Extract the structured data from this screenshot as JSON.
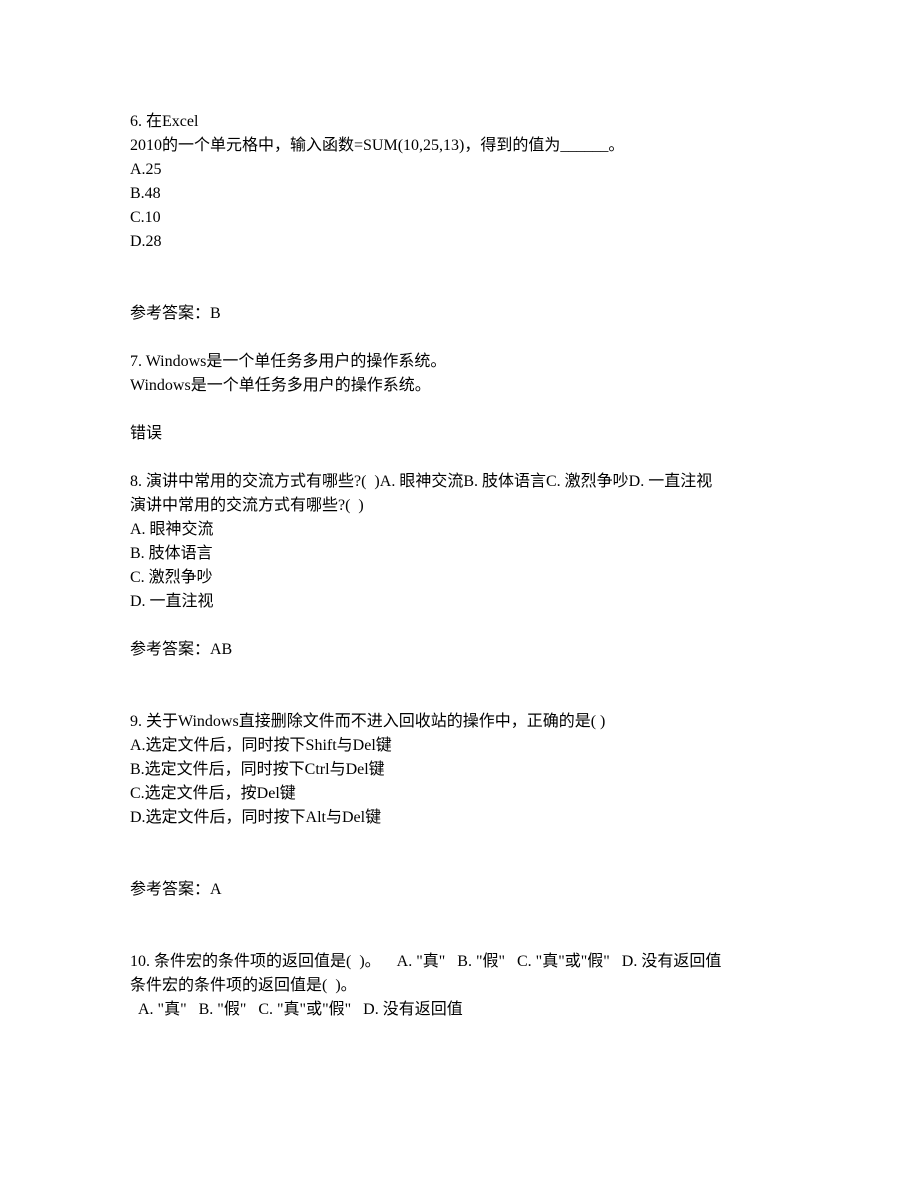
{
  "q6": {
    "line1": "6. 在Excel",
    "line2": "2010的一个单元格中，输入函数=SUM(10,25,13)，得到的值为______。",
    "optA": "A.25",
    "optB": "B.48",
    "optC": "C.10",
    "optD": "D.28",
    "answer": "参考答案：B"
  },
  "q7": {
    "line1": "7. Windows是一个单任务多用户的操作系统。",
    "line2": "Windows是一个单任务多用户的操作系统。",
    "answer": "错误"
  },
  "q8": {
    "line1": "8. 演讲中常用的交流方式有哪些?(  )A. 眼神交流B. 肢体语言C. 激烈争吵D. 一直注视",
    "line2": "演讲中常用的交流方式有哪些?(  )",
    "optA": "A. 眼神交流",
    "optB": "B. 肢体语言",
    "optC": "C. 激烈争吵",
    "optD": "D. 一直注视",
    "answer": "参考答案：AB"
  },
  "q9": {
    "line1": "9. 关于Windows直接删除文件而不进入回收站的操作中，正确的是( )",
    "optA": "A.选定文件后，同时按下Shift与Del键",
    "optB": "B.选定文件后，同时按下Ctrl与Del键",
    "optC": "C.选定文件后，按Del键",
    "optD": "D.选定文件后，同时按下Alt与Del键",
    "answer": "参考答案：A"
  },
  "q10": {
    "line1": "10. 条件宏的条件项的返回值是(  )。    A. \"真\"   B. \"假\"   C. \"真\"或\"假\"   D. 没有返回值",
    "line2": "条件宏的条件项的返回值是(  )。",
    "line3": "  A. \"真\"   B. \"假\"   C. \"真\"或\"假\"   D. 没有返回值"
  }
}
